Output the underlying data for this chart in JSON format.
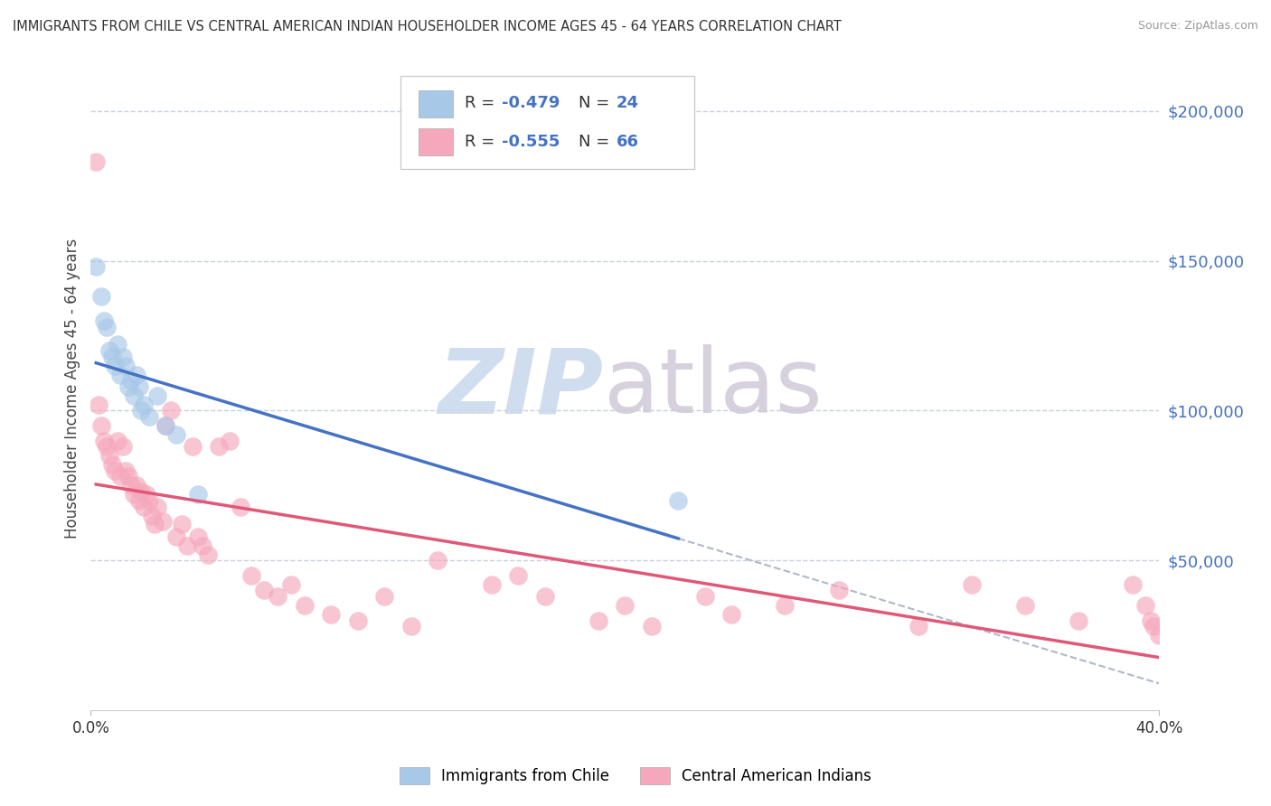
{
  "title": "IMMIGRANTS FROM CHILE VS CENTRAL AMERICAN INDIAN HOUSEHOLDER INCOME AGES 45 - 64 YEARS CORRELATION CHART",
  "source": "Source: ZipAtlas.com",
  "ylabel": "Householder Income Ages 45 - 64 years",
  "xlim": [
    0.0,
    0.4
  ],
  "ylim": [
    0,
    215000
  ],
  "yticks": [
    50000,
    100000,
    150000,
    200000
  ],
  "ytick_labels": [
    "$50,000",
    "$100,000",
    "$150,000",
    "$200,000"
  ],
  "xtick_left": "0.0%",
  "xtick_right": "40.0%",
  "legend_r1": "-0.479",
  "legend_n1": "24",
  "legend_r2": "-0.555",
  "legend_n2": "66",
  "color_chile": "#a8c8e8",
  "color_indian": "#f5a8bc",
  "line_color_chile": "#4472c4",
  "line_color_indian": "#e05878",
  "dash_color": "#b0b8c8",
  "background_color": "#ffffff",
  "grid_color": "#c8d0dc",
  "watermark_zip_color": "#c8d8ec",
  "watermark_atlas_color": "#d0c8d8",
  "chile_x": [
    0.002,
    0.004,
    0.005,
    0.006,
    0.007,
    0.008,
    0.009,
    0.01,
    0.011,
    0.012,
    0.013,
    0.014,
    0.015,
    0.016,
    0.017,
    0.018,
    0.019,
    0.02,
    0.022,
    0.025,
    0.028,
    0.032,
    0.04,
    0.22
  ],
  "chile_y": [
    148000,
    138000,
    130000,
    128000,
    120000,
    118000,
    115000,
    122000,
    112000,
    118000,
    115000,
    108000,
    110000,
    105000,
    112000,
    108000,
    100000,
    102000,
    98000,
    105000,
    95000,
    92000,
    72000,
    70000
  ],
  "indian_x": [
    0.002,
    0.003,
    0.004,
    0.005,
    0.006,
    0.007,
    0.008,
    0.009,
    0.01,
    0.011,
    0.012,
    0.013,
    0.014,
    0.015,
    0.016,
    0.017,
    0.018,
    0.019,
    0.02,
    0.021,
    0.022,
    0.023,
    0.024,
    0.025,
    0.027,
    0.028,
    0.03,
    0.032,
    0.034,
    0.036,
    0.038,
    0.04,
    0.042,
    0.044,
    0.048,
    0.052,
    0.056,
    0.06,
    0.065,
    0.07,
    0.075,
    0.08,
    0.09,
    0.1,
    0.11,
    0.12,
    0.13,
    0.15,
    0.16,
    0.17,
    0.19,
    0.2,
    0.21,
    0.23,
    0.24,
    0.26,
    0.28,
    0.31,
    0.33,
    0.35,
    0.37,
    0.39,
    0.395,
    0.397,
    0.398,
    0.4
  ],
  "indian_y": [
    183000,
    102000,
    95000,
    90000,
    88000,
    85000,
    82000,
    80000,
    90000,
    78000,
    88000,
    80000,
    78000,
    75000,
    72000,
    75000,
    70000,
    73000,
    68000,
    72000,
    70000,
    65000,
    62000,
    68000,
    63000,
    95000,
    100000,
    58000,
    62000,
    55000,
    88000,
    58000,
    55000,
    52000,
    88000,
    90000,
    68000,
    45000,
    40000,
    38000,
    42000,
    35000,
    32000,
    30000,
    38000,
    28000,
    50000,
    42000,
    45000,
    38000,
    30000,
    35000,
    28000,
    38000,
    32000,
    35000,
    40000,
    28000,
    42000,
    35000,
    30000,
    42000,
    35000,
    30000,
    28000,
    25000
  ]
}
